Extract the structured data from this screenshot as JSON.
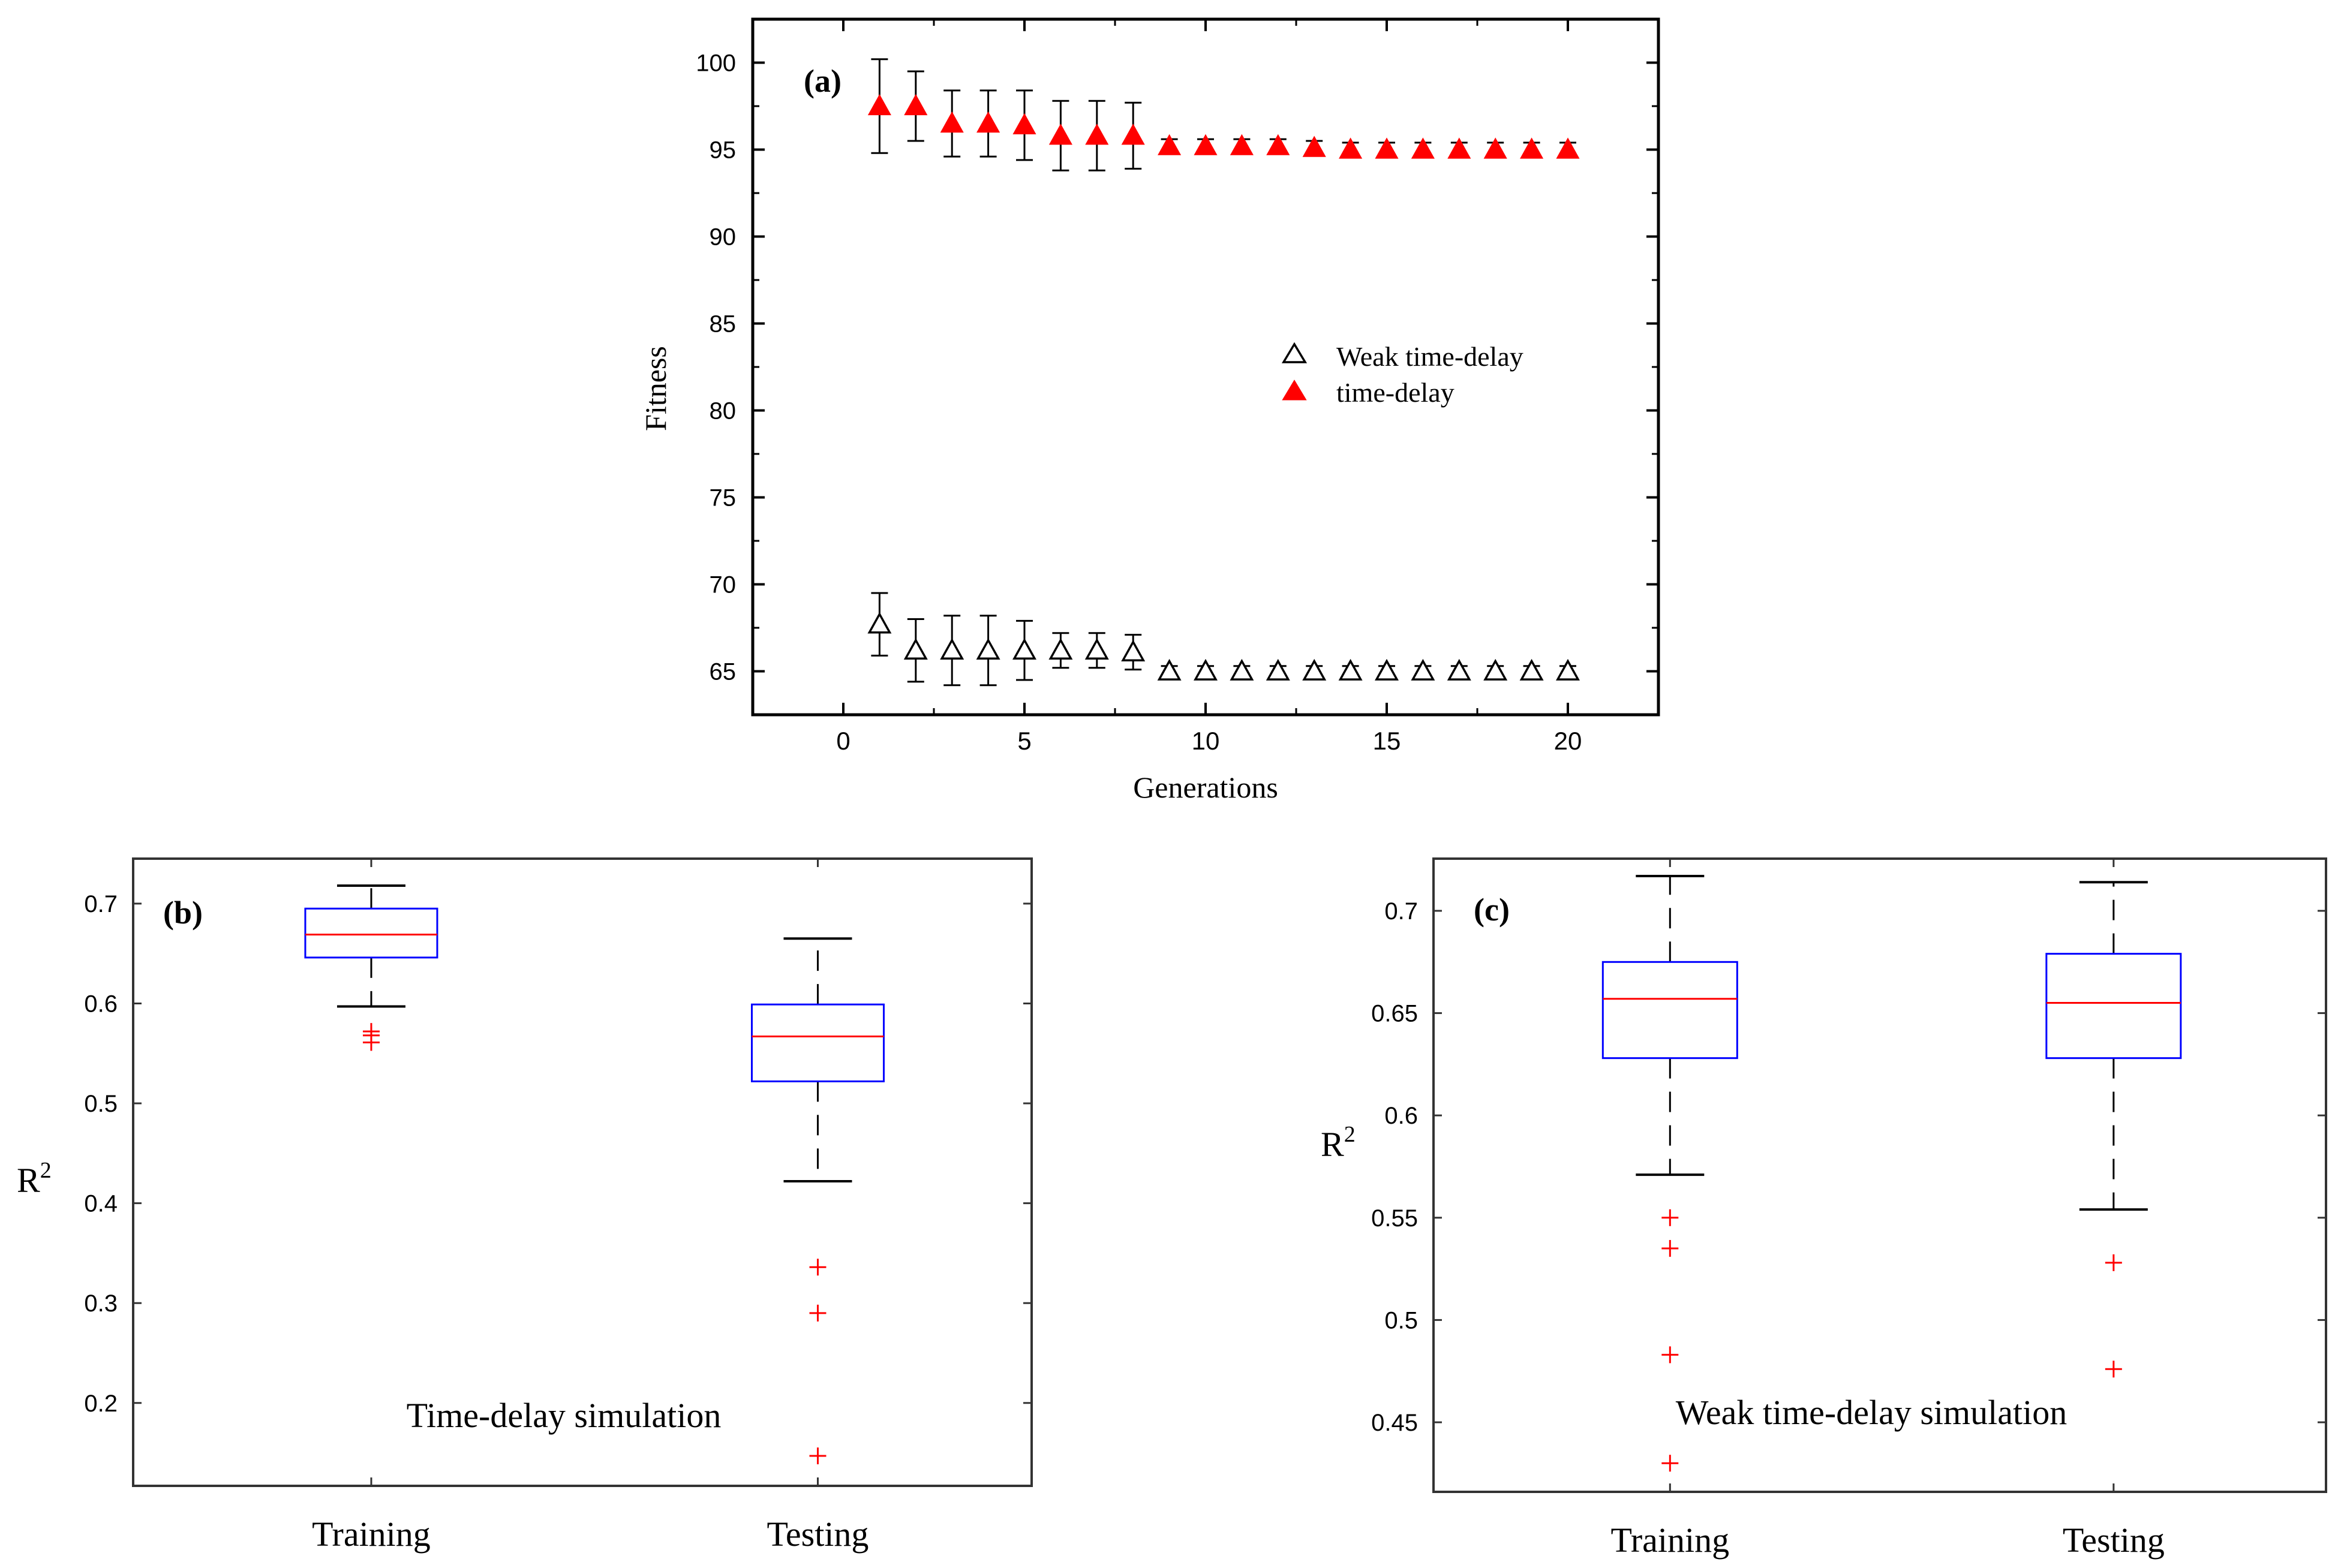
{
  "chart_data": [
    {
      "id": "a",
      "type": "scatter",
      "panel_label": "(a)",
      "title": "",
      "xlabel": "Generations",
      "ylabel": "Fitness",
      "xlim": [
        -2.5,
        22.5
      ],
      "ylim": [
        62.5,
        102.5
      ],
      "xticks": [
        0,
        5,
        10,
        15,
        20
      ],
      "yticks": [
        65,
        70,
        75,
        80,
        85,
        90,
        95,
        100
      ],
      "grid": false,
      "legend_position": "right-middle",
      "series": [
        {
          "name": "Weak time-delay",
          "marker": "open-triangle",
          "color": "#000000",
          "x": [
            1,
            2,
            3,
            4,
            5,
            6,
            7,
            8,
            9,
            10,
            11,
            12,
            13,
            14,
            15,
            16,
            17,
            18,
            19,
            20
          ],
          "y": [
            67.7,
            66.2,
            66.2,
            66.2,
            66.2,
            66.2,
            66.2,
            66.1,
            65.0,
            65.0,
            65.0,
            65.0,
            65.0,
            65.0,
            65.0,
            65.0,
            65.0,
            65.0,
            65.0,
            65.0
          ],
          "err": [
            1.8,
            1.8,
            2.0,
            2.0,
            1.7,
            1.0,
            1.0,
            1.0,
            0.3,
            0.3,
            0.3,
            0.3,
            0.3,
            0.3,
            0.3,
            0.3,
            0.3,
            0.3,
            0.3,
            0.3
          ]
        },
        {
          "name": "time-delay",
          "marker": "filled-triangle",
          "color": "#ff0000",
          "x": [
            1,
            2,
            3,
            4,
            5,
            6,
            7,
            8,
            9,
            10,
            11,
            12,
            13,
            14,
            15,
            16,
            17,
            18,
            19,
            20
          ],
          "y": [
            97.5,
            97.5,
            96.5,
            96.5,
            96.4,
            95.8,
            95.8,
            95.8,
            95.2,
            95.2,
            95.2,
            95.2,
            95.1,
            95.0,
            95.0,
            95.0,
            95.0,
            95.0,
            95.0,
            95.0
          ],
          "err": [
            2.7,
            2.0,
            1.9,
            1.9,
            2.0,
            2.0,
            2.0,
            1.9,
            0.4,
            0.4,
            0.4,
            0.4,
            0.4,
            0.4,
            0.4,
            0.4,
            0.4,
            0.4,
            0.4,
            0.4
          ]
        }
      ]
    },
    {
      "id": "b",
      "type": "box",
      "panel_label": "(b)",
      "annotation": "Time-delay simulation",
      "ylabel": "R",
      "ylabel_sup": "2",
      "categories": [
        "Training",
        "Testing"
      ],
      "ylim": [
        0.117,
        0.745
      ],
      "yticks": [
        0.2,
        0.3,
        0.4,
        0.5,
        0.6,
        0.7
      ],
      "ytick_labels": [
        "0.2",
        "0.3",
        "0.4",
        "0.5",
        "0.6",
        "0.7"
      ],
      "boxes": [
        {
          "whisker_low": 0.597,
          "q1": 0.646,
          "median": 0.669,
          "q3": 0.695,
          "whisker_high": 0.718,
          "outliers": [
            0.572,
            0.568,
            0.561
          ]
        },
        {
          "whisker_low": 0.422,
          "q1": 0.522,
          "median": 0.567,
          "q3": 0.599,
          "whisker_high": 0.665,
          "outliers": [
            0.336,
            0.29,
            0.147
          ]
        }
      ]
    },
    {
      "id": "c",
      "type": "box",
      "panel_label": "(c)",
      "annotation": "Weak time-delay simulation",
      "ylabel": "R",
      "ylabel_sup": "2",
      "categories": [
        "Training",
        "Testing"
      ],
      "ylim": [
        0.416,
        0.7255
      ],
      "yticks": [
        0.45,
        0.5,
        0.55,
        0.6,
        0.65,
        0.7
      ],
      "ytick_labels": [
        "0.45",
        "0.5",
        "0.55",
        "0.6",
        "0.65",
        "0.7"
      ],
      "boxes": [
        {
          "whisker_low": 0.571,
          "q1": 0.628,
          "median": 0.657,
          "q3": 0.675,
          "whisker_high": 0.717,
          "outliers": [
            0.55,
            0.535,
            0.483,
            0.43
          ]
        },
        {
          "whisker_low": 0.554,
          "q1": 0.628,
          "median": 0.655,
          "q3": 0.679,
          "whisker_high": 0.714,
          "outliers": [
            0.528,
            0.476
          ]
        }
      ]
    }
  ]
}
